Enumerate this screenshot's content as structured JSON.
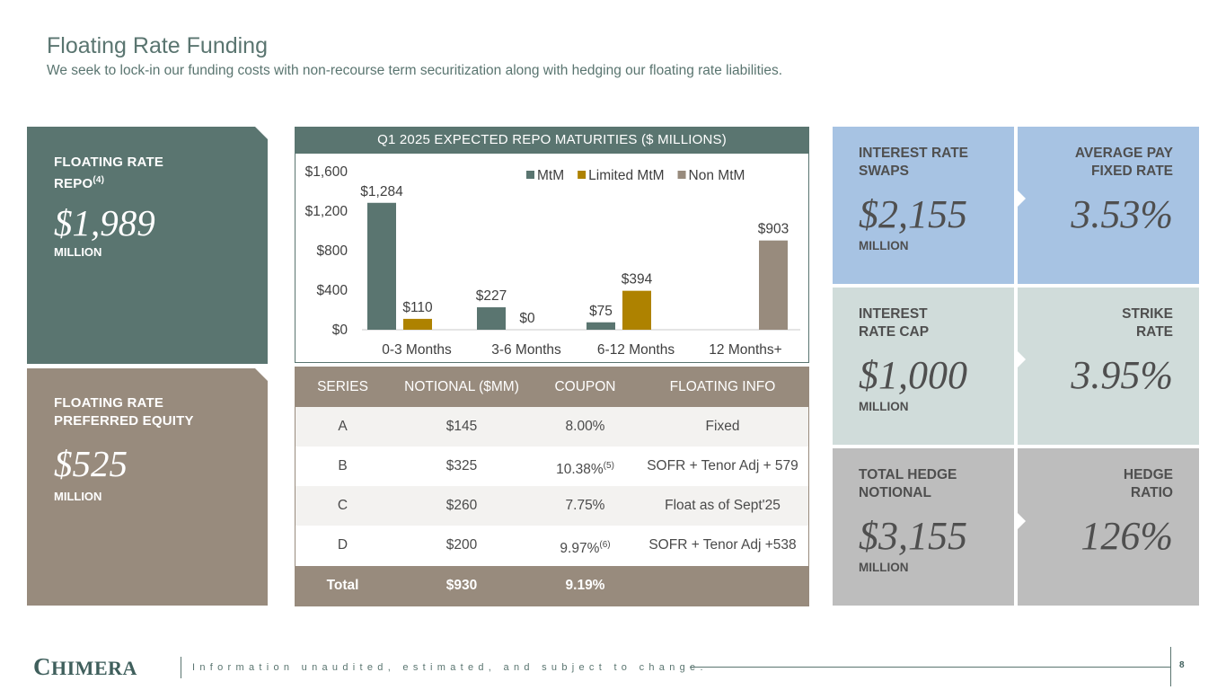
{
  "header": {
    "title": "Floating Rate Funding",
    "subtitle": "We seek to lock-in our funding costs with non-recourse term securitization along with hedging our floating rate liabilities."
  },
  "left_panels": {
    "repo": {
      "label_line1": "FLOATING RATE",
      "label_line2": "REPO",
      "note": "(4)",
      "value": "$1,989",
      "unit": "MILLION",
      "color": "#5a7570"
    },
    "preferred": {
      "label_line1": "FLOATING RATE",
      "label_line2": "PREFERRED EQUITY",
      "value": "$525",
      "unit": "MILLION",
      "color": "#988b7d"
    }
  },
  "chart_data": {
    "type": "bar",
    "title": "Q1 2025 EXPECTED REPO MATURITIES ($ MILLIONS)",
    "categories": [
      "0-3 Months",
      "3-6 Months",
      "6-12 Months",
      "12 Months+"
    ],
    "series": [
      {
        "name": "MtM",
        "color": "#5a7570",
        "values": [
          1284,
          227,
          75,
          0
        ]
      },
      {
        "name": "Limited MtM",
        "color": "#ae8200",
        "values": [
          110,
          0,
          394,
          0
        ]
      },
      {
        "name": "Non MtM",
        "color": "#988b7d",
        "values": [
          0,
          0,
          0,
          903
        ]
      }
    ],
    "data_labels": [
      {
        "series": 0,
        "category": 0,
        "text": "$1,284"
      },
      {
        "series": 1,
        "category": 0,
        "text": "$110"
      },
      {
        "series": 1,
        "category": 1,
        "text": "$0"
      },
      {
        "series": 0,
        "category": 1,
        "text": "$227"
      },
      {
        "series": 0,
        "category": 2,
        "text": "$75"
      },
      {
        "series": 1,
        "category": 2,
        "text": "$394"
      },
      {
        "series": 2,
        "category": 3,
        "text": "$903"
      }
    ],
    "yticks": [
      0,
      400,
      800,
      1200,
      1600
    ],
    "ytick_labels": [
      "$0",
      "$400",
      "$800",
      "$1,200",
      "$1,600"
    ],
    "ylim": [
      0,
      1600
    ],
    "legend_position": "top-right",
    "grid": false
  },
  "table": {
    "headers": [
      "SERIES",
      "NOTIONAL ($MM)",
      "COUPON",
      "FLOATING INFO"
    ],
    "rows": [
      {
        "series": "A",
        "notional": "$145",
        "coupon": "8.00%",
        "note": "",
        "info": "Fixed"
      },
      {
        "series": "B",
        "notional": "$325",
        "coupon": "10.38%",
        "note": "(5)",
        "info": "SOFR + Tenor Adj + 579"
      },
      {
        "series": "C",
        "notional": "$260",
        "coupon": "7.75%",
        "note": "",
        "info": "Float as of Sept'25"
      },
      {
        "series": "D",
        "notional": "$200",
        "coupon": "9.97%",
        "note": "(6)",
        "info": "SOFR + Tenor Adj +538"
      }
    ],
    "total": {
      "label": "Total",
      "notional": "$930",
      "coupon": "9.19%"
    }
  },
  "hedges": [
    {
      "left_label_1": "INTEREST RATE",
      "left_label_2": "SWAPS",
      "left_value": "$2,155",
      "unit": "MILLION",
      "right_label_1": "AVERAGE PAY",
      "right_label_2": "FIXED RATE",
      "right_value": "3.53%",
      "color": "#a7c3e3"
    },
    {
      "left_label_1": "INTEREST",
      "left_label_2": "RATE CAP",
      "left_value": "$1,000",
      "unit": "MILLION",
      "right_label_1": "STRIKE",
      "right_label_2": "RATE",
      "right_value": "3.95%",
      "color": "#d0dcda"
    },
    {
      "left_label_1": "TOTAL HEDGE",
      "left_label_2": "NOTIONAL",
      "left_value": "$3,155",
      "unit": "MILLION",
      "right_label_1": "HEDGE",
      "right_label_2": "RATIO",
      "right_value": "126%",
      "color": "#bdbdbd"
    }
  ],
  "footer": {
    "logo_initial": "C",
    "logo_rest": "HIMERA",
    "disclaimer": "Information unaudited, estimated, and subject to change.",
    "page": "8"
  }
}
